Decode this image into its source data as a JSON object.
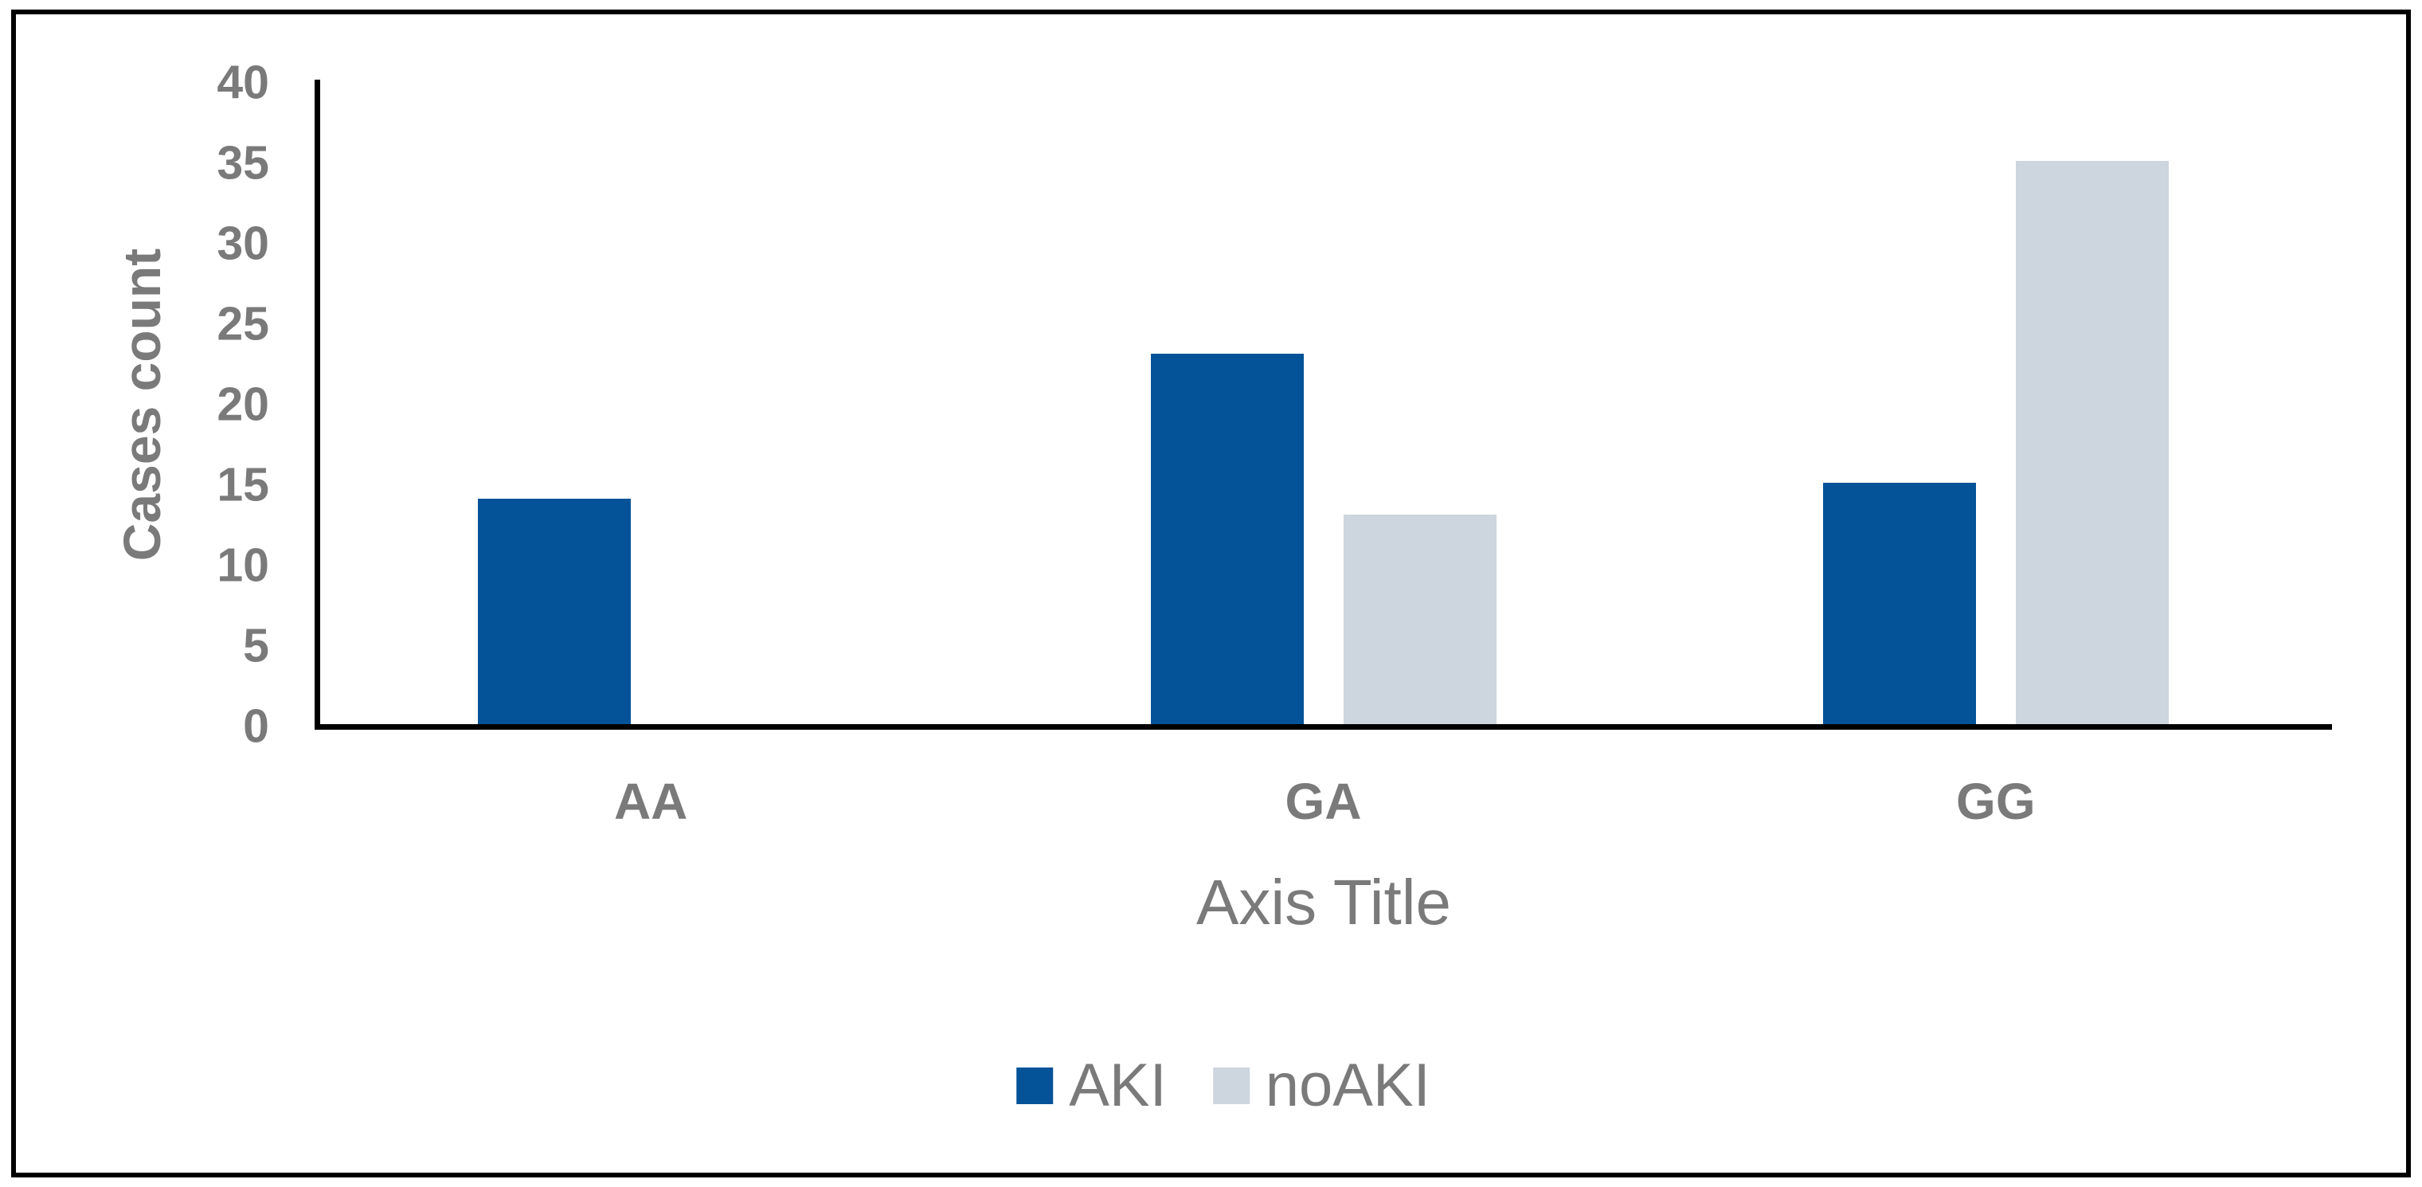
{
  "chart_data": {
    "type": "bar",
    "categories": [
      "AA",
      "GA",
      "GG"
    ],
    "series": [
      {
        "name": "AKI",
        "color": "#045399",
        "values": [
          14,
          23,
          15
        ]
      },
      {
        "name": "noAKI",
        "color": "#CDD5DE",
        "values": [
          0,
          13,
          35
        ]
      }
    ],
    "title": "",
    "xlabel": "Axis Title",
    "ylabel": "Cases count",
    "ylim": [
      0,
      40
    ],
    "ytick_step": 5,
    "yticks": [
      0,
      5,
      10,
      15,
      20,
      25,
      30,
      35,
      40
    ],
    "grid": false,
    "legend_position": "bottom",
    "axis_color": "#000000",
    "border_color": "#000000",
    "text_color": "#7A7A7A",
    "background": "#FFFFFF"
  }
}
